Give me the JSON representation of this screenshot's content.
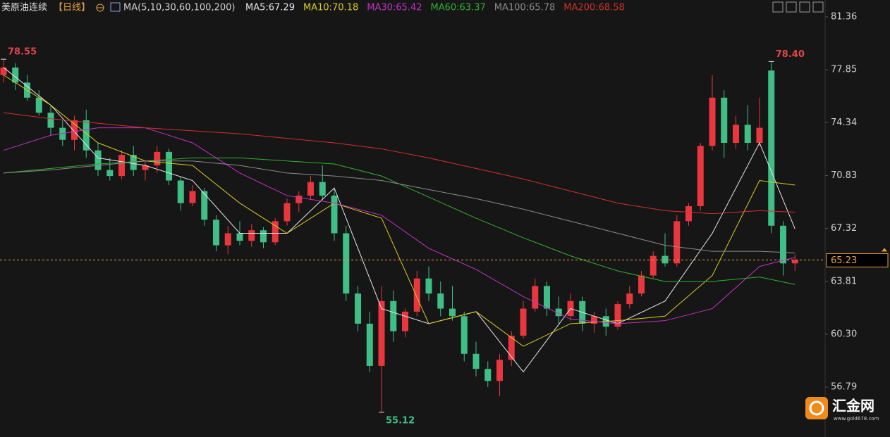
{
  "chart_data": {
    "type": "candlestick",
    "title": "美原油连续",
    "period": "【日线】",
    "indicator": "MA(5,10,30,60,100,200)",
    "up_color": "#e8373e",
    "down_color": "#3fbf86",
    "ylim": [
      53.48,
      82.48
    ],
    "yticks": [
      81.36,
      77.85,
      74.34,
      70.83,
      67.32,
      63.81,
      {
        "value": 60.3,
        "label": "60.30"
      },
      56.79
    ],
    "candles": [
      [
        77.5,
        78.55,
        77,
        78
      ],
      [
        78,
        78.3,
        76.5,
        77
      ],
      [
        77,
        77.5,
        75.8,
        76
      ],
      [
        76,
        76.5,
        74.8,
        75
      ],
      [
        75,
        75.5,
        73.5,
        74
      ],
      [
        74,
        74.5,
        72.8,
        73.2
      ],
      [
        73.2,
        74.8,
        72.5,
        74.5
      ],
      [
        74.5,
        75.2,
        72,
        72.5
      ],
      [
        72.5,
        73,
        70.8,
        71.2
      ],
      [
        71.2,
        72,
        70.5,
        70.8
      ],
      [
        70.8,
        72.5,
        70.6,
        72.2
      ],
      [
        72.2,
        72.8,
        70.8,
        71.2
      ],
      [
        71.2,
        71.8,
        70.5,
        71.5
      ],
      [
        71.5,
        72.8,
        71,
        72.4
      ],
      [
        72.4,
        72.6,
        70.2,
        70.5
      ],
      [
        70.5,
        70.8,
        68.5,
        69
      ],
      [
        69,
        70.2,
        68.8,
        69.8
      ],
      [
        69.8,
        70,
        67.5,
        67.9
      ],
      [
        67.9,
        68.2,
        65.8,
        66.2
      ],
      [
        66.2,
        67.5,
        65.6,
        67
      ],
      [
        67,
        67.8,
        66.2,
        66.5
      ],
      [
        66.5,
        67.6,
        66.1,
        67.2
      ],
      [
        67.2,
        67.4,
        66,
        66.4
      ],
      [
        66.4,
        68,
        66.2,
        67.8
      ],
      [
        67.8,
        69.3,
        67.5,
        69
      ],
      [
        69,
        69.8,
        68.4,
        69.5
      ],
      [
        69.5,
        70.8,
        69.2,
        70.4
      ],
      [
        70.4,
        71.5,
        69.2,
        69.5
      ],
      [
        69.5,
        70,
        66.5,
        67
      ],
      [
        67,
        67.5,
        62.5,
        63
      ],
      [
        63,
        63.5,
        60.5,
        61
      ],
      [
        61,
        61.8,
        57.8,
        58.2
      ],
      [
        58.2,
        63.5,
        55.12,
        62.5
      ],
      [
        62.5,
        63.2,
        59.8,
        60.5
      ],
      [
        60.5,
        62,
        60.1,
        61.8
      ],
      [
        61.8,
        64.5,
        61.5,
        64
      ],
      [
        64,
        64.8,
        62.5,
        63
      ],
      [
        63,
        63.8,
        61.5,
        62
      ],
      [
        62,
        63.5,
        61.2,
        61.5
      ],
      [
        61.5,
        61.8,
        58.5,
        59
      ],
      [
        59,
        59.8,
        57.5,
        58
      ],
      [
        58,
        58.5,
        56.8,
        57.2
      ],
      [
        57.2,
        59,
        56.2,
        58.6
      ],
      [
        58.6,
        60.5,
        58.2,
        60.2
      ],
      [
        60.2,
        62.5,
        60,
        62
      ],
      [
        62,
        64,
        61.8,
        63.5
      ],
      [
        63.5,
        63.8,
        61.5,
        62
      ],
      [
        62,
        62.8,
        61,
        61.5
      ],
      [
        61.5,
        63,
        61.2,
        62.5
      ],
      [
        62.5,
        62.8,
        60.5,
        61
      ],
      [
        61,
        61.8,
        60.4,
        61.5
      ],
      [
        61.5,
        62,
        60.2,
        60.8
      ],
      [
        60.8,
        62.5,
        60.6,
        62.3
      ],
      [
        62.3,
        63.5,
        62,
        63
      ],
      [
        63,
        64.5,
        62.8,
        64.2
      ],
      [
        64.2,
        65.8,
        64,
        65.5
      ],
      [
        65.5,
        67,
        64.8,
        65
      ],
      [
        65,
        68.2,
        64.8,
        67.8
      ],
      [
        67.8,
        69,
        67.5,
        68.8
      ],
      [
        68.8,
        73,
        68.5,
        72.8
      ],
      [
        72.8,
        77.5,
        72.5,
        76
      ],
      [
        76,
        76.5,
        72,
        73
      ],
      [
        73,
        74.8,
        72.6,
        74.2
      ],
      [
        74.2,
        75.5,
        72.5,
        73
      ],
      [
        73,
        76,
        72.8,
        74
      ],
      [
        77.8,
        78.4,
        67,
        67.5
      ],
      [
        67.5,
        67.8,
        64.2,
        65
      ],
      [
        65,
        65.6,
        64.5,
        65.23
      ]
    ],
    "ma_x": [
      0,
      4,
      8,
      12,
      16,
      20,
      24,
      28,
      32,
      36,
      40,
      44,
      48,
      52,
      56,
      60,
      64,
      67
    ],
    "series": [
      {
        "label": "MA5:67.29",
        "color": "#e6e6e6",
        "values": [
          78,
          75.5,
          72,
          71.5,
          70.5,
          67,
          67,
          70,
          62,
          61,
          61.8,
          57.8,
          62,
          61,
          62.5,
          67,
          73,
          67.3
        ]
      },
      {
        "label": "MA10:70.18",
        "color": "#d9cc1f",
        "values": [
          77.5,
          75.5,
          73,
          71.8,
          71.5,
          69,
          67,
          69,
          68,
          61,
          61.8,
          59.5,
          61,
          61.2,
          61.5,
          64.2,
          70.5,
          70.2
        ]
      },
      {
        "label": "MA30:65.42",
        "color": "#c331c3",
        "values": [
          72.5,
          73.5,
          74,
          74,
          73,
          71,
          69.5,
          69,
          68.2,
          66,
          64.6,
          62.8,
          61.3,
          61,
          61.2,
          62,
          64.8,
          65.4
        ]
      },
      {
        "label": "MA60:63.37",
        "color": "#2fb12f",
        "values": [
          71,
          71.3,
          71.6,
          71.8,
          72,
          72,
          71.8,
          71.6,
          70.8,
          69.4,
          68,
          66.7,
          65.5,
          64.5,
          63.8,
          63.8,
          64.1,
          63.6
        ]
      },
      {
        "label": "MA100:65.78",
        "color": "#8a8a8a",
        "values": [
          71,
          71.2,
          71.5,
          71.8,
          71.8,
          71.5,
          71,
          70.8,
          70.5,
          69.9,
          69.3,
          68.6,
          67.8,
          67,
          66.2,
          65.8,
          65.8,
          65.7
        ]
      },
      {
        "label": "MA200:68.58",
        "color": "#d0302f",
        "values": [
          75,
          74.6,
          74.3,
          74,
          73.8,
          73.6,
          73.3,
          73,
          72.6,
          72,
          71.3,
          70.6,
          69.8,
          69,
          68.5,
          68.3,
          68.5,
          68.4
        ]
      }
    ],
    "extremes": [
      78.55,
      {
        "value": 78.4,
        "label": "78.40"
      },
      55.12
    ],
    "last_price": 65.23,
    "logo": {
      "name": "汇金网",
      "url": "www.gold678.com"
    }
  }
}
